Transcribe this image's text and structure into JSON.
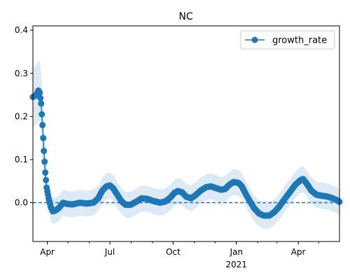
{
  "chart_data": {
    "type": "line",
    "title": "NC",
    "xlabel": "",
    "ylabel": "",
    "x_range": [
      "2020-03-11",
      "2021-05-31"
    ],
    "ylim": [
      -0.09,
      0.41
    ],
    "y_ticks": [
      0.0,
      0.1,
      0.2,
      0.3,
      0.4
    ],
    "y_tick_labels": [
      "0.0",
      "0.1",
      "0.2",
      "0.3",
      "0.4"
    ],
    "x_ticks": [
      {
        "date": "2020-04-01",
        "label": "Apr"
      },
      {
        "date": "2020-07-01",
        "label": "Jul"
      },
      {
        "date": "2020-10-01",
        "label": "Oct"
      },
      {
        "date": "2021-01-01",
        "label": "Jan",
        "sublabel": "2021"
      },
      {
        "date": "2021-04-01",
        "label": "Apr"
      }
    ],
    "grid": false,
    "legend_position": "top-right",
    "reference_line": {
      "y": 0,
      "style": "dashed"
    },
    "colors": {
      "line": "#1f77b4",
      "band": "#dde9f5"
    },
    "series": [
      {
        "name": "growth_rate",
        "band_width": 0.03,
        "points": [
          [
            "2020-03-11",
            0.245
          ],
          [
            "2020-03-16",
            0.25
          ],
          [
            "2020-03-19",
            0.26
          ],
          [
            "2020-03-21",
            0.255
          ],
          [
            "2020-03-23",
            0.23
          ],
          [
            "2020-03-25",
            0.18
          ],
          [
            "2020-03-27",
            0.12
          ],
          [
            "2020-03-29",
            0.07
          ],
          [
            "2020-03-31",
            0.035
          ],
          [
            "2020-04-03",
            0.01
          ],
          [
            "2020-04-06",
            -0.01
          ],
          [
            "2020-04-09",
            -0.02
          ],
          [
            "2020-04-13",
            -0.018
          ],
          [
            "2020-04-18",
            -0.012
          ],
          [
            "2020-04-24",
            0.0
          ],
          [
            "2020-04-30",
            -0.003
          ],
          [
            "2020-05-08",
            -0.004
          ],
          [
            "2020-05-18",
            0.0
          ],
          [
            "2020-05-28",
            -0.002
          ],
          [
            "2020-06-07",
            0.0
          ],
          [
            "2020-06-14",
            0.01
          ],
          [
            "2020-06-20",
            0.028
          ],
          [
            "2020-06-26",
            0.038
          ],
          [
            "2020-07-01",
            0.04
          ],
          [
            "2020-07-06",
            0.033
          ],
          [
            "2020-07-12",
            0.018
          ],
          [
            "2020-07-18",
            0.003
          ],
          [
            "2020-07-24",
            -0.005
          ],
          [
            "2020-07-31",
            -0.005
          ],
          [
            "2020-08-08",
            0.002
          ],
          [
            "2020-08-16",
            0.01
          ],
          [
            "2020-08-24",
            0.009
          ],
          [
            "2020-09-02",
            0.004
          ],
          [
            "2020-09-12",
            0.0
          ],
          [
            "2020-09-20",
            0.003
          ],
          [
            "2020-09-27",
            0.012
          ],
          [
            "2020-10-03",
            0.023
          ],
          [
            "2020-10-08",
            0.027
          ],
          [
            "2020-10-14",
            0.024
          ],
          [
            "2020-10-20",
            0.014
          ],
          [
            "2020-10-27",
            0.01
          ],
          [
            "2020-11-03",
            0.018
          ],
          [
            "2020-11-10",
            0.028
          ],
          [
            "2020-11-18",
            0.036
          ],
          [
            "2020-11-25",
            0.038
          ],
          [
            "2020-12-02",
            0.034
          ],
          [
            "2020-12-10",
            0.03
          ],
          [
            "2020-12-16",
            0.032
          ],
          [
            "2020-12-22",
            0.042
          ],
          [
            "2020-12-28",
            0.048
          ],
          [
            "2021-01-04",
            0.046
          ],
          [
            "2021-01-09",
            0.038
          ],
          [
            "2021-01-14",
            0.022
          ],
          [
            "2021-01-20",
            0.005
          ],
          [
            "2021-01-27",
            -0.013
          ],
          [
            "2021-02-03",
            -0.025
          ],
          [
            "2021-02-10",
            -0.03
          ],
          [
            "2021-02-18",
            -0.03
          ],
          [
            "2021-02-25",
            -0.022
          ],
          [
            "2021-03-04",
            -0.01
          ],
          [
            "2021-03-12",
            0.008
          ],
          [
            "2021-03-20",
            0.025
          ],
          [
            "2021-03-28",
            0.042
          ],
          [
            "2021-04-04",
            0.052
          ],
          [
            "2021-04-08",
            0.055
          ],
          [
            "2021-04-13",
            0.045
          ],
          [
            "2021-04-20",
            0.028
          ],
          [
            "2021-04-28",
            0.018
          ],
          [
            "2021-05-06",
            0.016
          ],
          [
            "2021-05-14",
            0.014
          ],
          [
            "2021-05-21",
            0.01
          ],
          [
            "2021-05-27",
            0.006
          ],
          [
            "2021-05-31",
            0.002
          ]
        ]
      }
    ]
  }
}
